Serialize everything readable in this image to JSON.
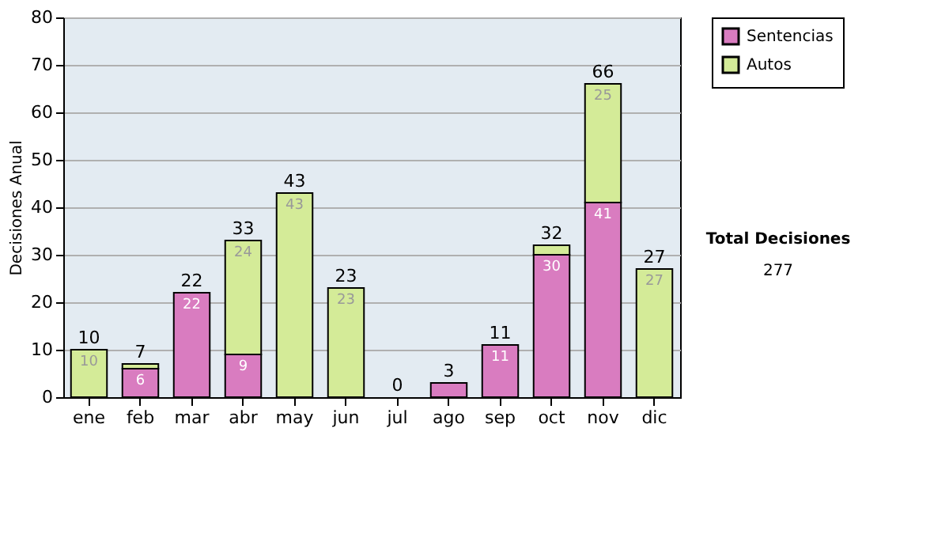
{
  "chart_data": {
    "type": "bar",
    "stacked": true,
    "ylabel": "Decisiones Anual",
    "categories": [
      "ene",
      "feb",
      "mar",
      "abr",
      "may",
      "jun",
      "jul",
      "ago",
      "sep",
      "oct",
      "nov",
      "dic"
    ],
    "series": [
      {
        "name": "Sentencias",
        "color": "#d97cc0",
        "values": [
          0,
          6,
          22,
          9,
          0,
          0,
          0,
          3,
          11,
          30,
          41,
          0
        ],
        "value_labels": [
          null,
          "6",
          "22",
          "9",
          null,
          null,
          null,
          null,
          "11",
          "30",
          "41",
          null
        ]
      },
      {
        "name": "Autos",
        "color": "#d4eb98",
        "values": [
          10,
          1,
          0,
          24,
          43,
          23,
          0,
          0,
          0,
          2,
          25,
          27
        ],
        "value_labels": [
          "10",
          null,
          null,
          "24",
          "43",
          "23",
          null,
          null,
          null,
          null,
          "25",
          "27"
        ]
      }
    ],
    "totals": [
      "10",
      "7",
      "22",
      "33",
      "43",
      "23",
      "0",
      "3",
      "11",
      "32",
      "66",
      "27"
    ],
    "ylim": [
      0,
      80
    ],
    "yticks": [
      0,
      10,
      20,
      30,
      40,
      50,
      60,
      70,
      80
    ],
    "grid": "y",
    "legend": "right",
    "annotations": [
      "Total Decisiones",
      "277"
    ]
  }
}
